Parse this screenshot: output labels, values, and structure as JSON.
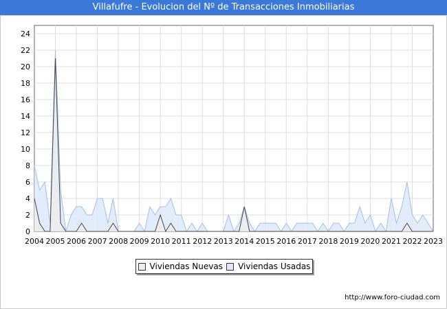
{
  "title": "Villafufre - Evolucion del Nº de Transacciones Inmobiliarias",
  "source": "http://www.foro-ciudad.com",
  "colors": {
    "title_bg": "#3b78d8",
    "nuevas_fill": "#eeeeee",
    "usadas_fill": "#dde9fa",
    "usadas_line": "#9fbfe8"
  },
  "chart_data": {
    "type": "area",
    "title": "Villafufre - Evolucion del Nº de Transacciones Inmobiliarias",
    "xlabel": "",
    "ylabel": "",
    "x_ticks": [
      "2004",
      "2005",
      "2006",
      "2007",
      "2008",
      "2009",
      "2010",
      "2011",
      "2012",
      "2013",
      "2014",
      "2015",
      "2016",
      "2017",
      "2018",
      "2019",
      "2020",
      "2021",
      "2022",
      "2023"
    ],
    "y_ticks": [
      "0",
      "2",
      "4",
      "6",
      "8",
      "10",
      "12",
      "14",
      "16",
      "18",
      "20",
      "22",
      "24"
    ],
    "xlim": [
      2004,
      2023
    ],
    "ylim": [
      0,
      25
    ],
    "grid": true,
    "legend": "bottom-center",
    "series": [
      {
        "name": "Viviendas Nuevas",
        "x": [
          2004.0,
          2004.25,
          2004.5,
          2004.75,
          2005.0,
          2005.25,
          2005.5,
          2005.75,
          2006.0,
          2006.25,
          2006.5,
          2006.75,
          2007.0,
          2007.25,
          2007.5,
          2007.75,
          2008.0,
          2008.25,
          2008.5,
          2008.75,
          2009.0,
          2009.25,
          2009.5,
          2009.75,
          2010.0,
          2010.25,
          2010.5,
          2010.75,
          2011.0,
          2011.25,
          2011.5,
          2011.75,
          2012.0,
          2012.25,
          2012.5,
          2012.75,
          2013.0,
          2013.25,
          2013.5,
          2013.75,
          2014.0,
          2014.25,
          2014.5,
          2014.75,
          2015.0,
          2015.25,
          2015.5,
          2015.75,
          2016.0,
          2016.25,
          2016.5,
          2016.75,
          2017.0,
          2017.25,
          2017.5,
          2017.75,
          2018.0,
          2018.25,
          2018.5,
          2018.75,
          2019.0,
          2019.25,
          2019.5,
          2019.75,
          2020.0,
          2020.25,
          2020.5,
          2020.75,
          2021.0,
          2021.25,
          2021.5,
          2021.75,
          2022.0,
          2022.25,
          2022.5,
          2022.75,
          2023.0
        ],
        "values": [
          4,
          1,
          0,
          0,
          21,
          1,
          0,
          0,
          0,
          1,
          0,
          0,
          0,
          0,
          0,
          1,
          0,
          0,
          0,
          0,
          0,
          0,
          0,
          0,
          2,
          0,
          1,
          0,
          0,
          0,
          0,
          0,
          0,
          0,
          0,
          0,
          0,
          0,
          0,
          0,
          3,
          0,
          0,
          0,
          0,
          0,
          0,
          0,
          0,
          0,
          0,
          0,
          0,
          0,
          0,
          0,
          0,
          0,
          0,
          0,
          0,
          0,
          0,
          0,
          0,
          0,
          0,
          0,
          0,
          0,
          0,
          1,
          0,
          0,
          0,
          0,
          0
        ]
      },
      {
        "name": "Viviendas Usadas",
        "x": [
          2004.0,
          2004.25,
          2004.5,
          2004.75,
          2005.0,
          2005.25,
          2005.5,
          2005.75,
          2006.0,
          2006.25,
          2006.5,
          2006.75,
          2007.0,
          2007.25,
          2007.5,
          2007.75,
          2008.0,
          2008.25,
          2008.5,
          2008.75,
          2009.0,
          2009.25,
          2009.5,
          2009.75,
          2010.0,
          2010.25,
          2010.5,
          2010.75,
          2011.0,
          2011.25,
          2011.5,
          2011.75,
          2012.0,
          2012.25,
          2012.5,
          2012.75,
          2013.0,
          2013.25,
          2013.5,
          2013.75,
          2014.0,
          2014.25,
          2014.5,
          2014.75,
          2015.0,
          2015.25,
          2015.5,
          2015.75,
          2016.0,
          2016.25,
          2016.5,
          2016.75,
          2017.0,
          2017.25,
          2017.5,
          2017.75,
          2018.0,
          2018.25,
          2018.5,
          2018.75,
          2019.0,
          2019.25,
          2019.5,
          2019.75,
          2020.0,
          2020.25,
          2020.5,
          2020.75,
          2021.0,
          2021.25,
          2021.5,
          2021.75,
          2022.0,
          2022.25,
          2022.5,
          2022.75,
          2023.0
        ],
        "values": [
          8,
          5,
          6,
          1,
          22,
          5,
          0,
          2,
          3,
          3,
          2,
          2,
          4,
          4,
          1,
          4,
          0,
          0,
          0,
          0,
          1,
          0,
          3,
          2,
          3,
          3,
          4,
          2,
          2,
          0,
          1,
          0,
          1,
          0,
          0,
          0,
          0,
          2,
          0,
          1,
          3,
          1,
          0,
          1,
          1,
          1,
          1,
          0,
          1,
          0,
          1,
          1,
          1,
          1,
          0,
          1,
          0,
          1,
          1,
          0,
          1,
          1,
          3,
          1,
          2,
          0,
          1,
          0,
          4,
          1,
          3,
          6,
          2,
          1,
          2,
          1,
          0
        ]
      }
    ]
  }
}
